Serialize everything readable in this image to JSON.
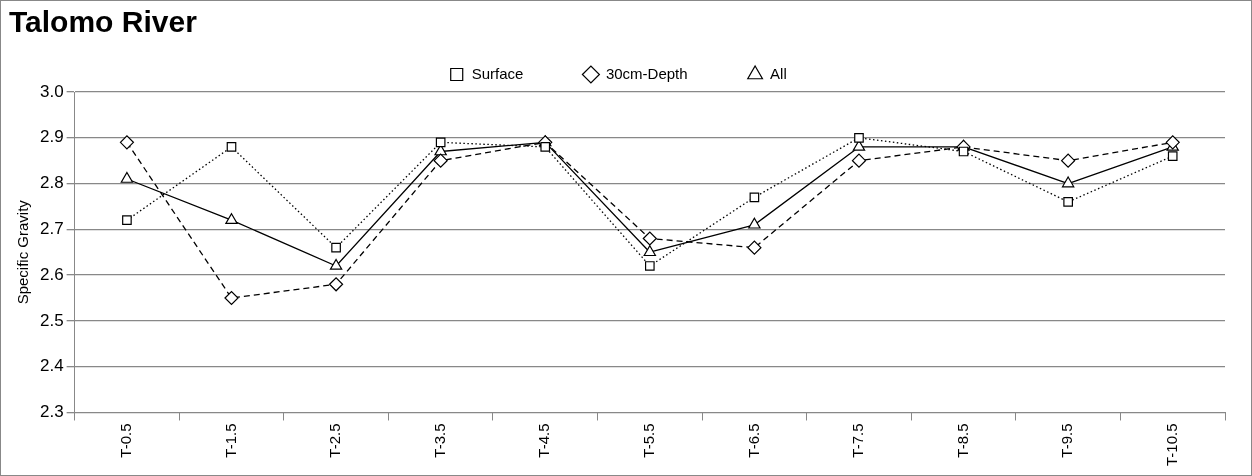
{
  "chart_data": {
    "type": "line",
    "title": "Talomo River",
    "ylabel": "Specific Gravity",
    "categories": [
      "T-0.5",
      "T-1.5",
      "T-2.5",
      "T-3.5",
      "T-4.5",
      "T-5.5",
      "T-6.5",
      "T-7.5",
      "T-8.5",
      "T-9.5",
      "T-10.5"
    ],
    "series": [
      {
        "name": "Surface",
        "color": "#000000",
        "marker": "square",
        "line_style": "dotted",
        "values": [
          2.72,
          2.88,
          2.66,
          2.89,
          2.88,
          2.62,
          2.77,
          2.9,
          2.87,
          2.76,
          2.86
        ]
      },
      {
        "name": "30cm-Depth",
        "color": "#000000",
        "marker": "diamond",
        "line_style": "dashed",
        "values": [
          2.89,
          2.55,
          2.58,
          2.85,
          2.89,
          2.68,
          2.66,
          2.85,
          2.88,
          2.85,
          2.89
        ]
      },
      {
        "name": "All",
        "color": "#000000",
        "marker": "triangle",
        "line_style": "solid",
        "values": [
          2.81,
          2.72,
          2.62,
          2.87,
          2.89,
          2.65,
          2.71,
          2.88,
          2.88,
          2.8,
          2.88
        ]
      }
    ],
    "ylim": [
      2.3,
      3.0
    ],
    "yticks": [
      2.3,
      2.4,
      2.5,
      2.6,
      2.7,
      2.8,
      2.9,
      {
        "value": 3.0,
        "label": "3.0"
      }
    ],
    "grid": "y",
    "legend": "top"
  }
}
